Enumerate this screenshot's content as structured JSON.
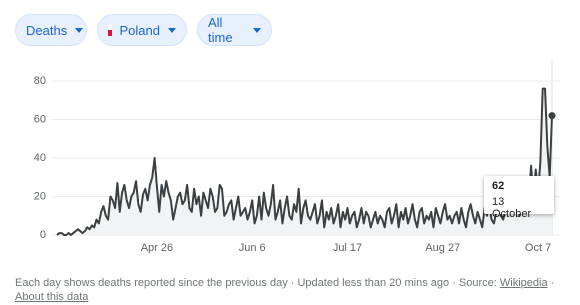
{
  "controls": [
    {
      "label": "Deaths"
    },
    {
      "label": "Poland"
    },
    {
      "label": "All time"
    }
  ],
  "chart_data": {
    "type": "line",
    "categories": [
      null,
      null,
      null,
      null,
      null,
      null,
      null,
      null,
      null,
      null,
      null,
      null,
      null,
      null,
      null,
      null,
      null,
      null,
      null,
      null,
      null,
      null,
      null,
      null,
      null,
      null,
      null,
      null,
      null,
      null,
      null,
      null,
      null,
      null,
      null,
      null,
      null,
      null,
      null,
      null,
      null,
      null,
      null,
      "Apr 26",
      null,
      null,
      null,
      null,
      null,
      null,
      null,
      null,
      null,
      null,
      null,
      null,
      null,
      null,
      null,
      null,
      null,
      null,
      null,
      null,
      null,
      null,
      null,
      null,
      null,
      null,
      null,
      null,
      null,
      null,
      null,
      null,
      null,
      null,
      null,
      null,
      null,
      null,
      null,
      null,
      "Jun 6",
      null,
      null,
      null,
      null,
      null,
      null,
      null,
      null,
      null,
      null,
      null,
      null,
      null,
      null,
      null,
      null,
      null,
      null,
      null,
      null,
      null,
      null,
      null,
      null,
      null,
      null,
      null,
      null,
      null,
      null,
      null,
      null,
      null,
      null,
      null,
      null,
      null,
      null,
      null,
      null,
      "Jul 17",
      null,
      null,
      null,
      null,
      null,
      null,
      null,
      null,
      null,
      null,
      null,
      null,
      null,
      null,
      null,
      null,
      null,
      null,
      null,
      null,
      null,
      null,
      null,
      null,
      null,
      null,
      null,
      null,
      null,
      null,
      null,
      null,
      null,
      null,
      null,
      null,
      null,
      null,
      null,
      null,
      "Aug 27",
      null,
      null,
      null,
      null,
      null,
      null,
      null,
      null,
      null,
      null,
      null,
      null,
      null,
      null,
      null,
      null,
      null,
      null,
      null,
      null,
      null,
      null,
      null,
      null,
      null,
      null,
      null,
      null,
      null,
      null,
      null,
      null,
      null,
      null,
      null,
      null,
      null,
      null,
      null,
      null,
      "Oct 7",
      null,
      null,
      null,
      null,
      null,
      null
    ],
    "values": [
      0,
      1,
      1,
      0,
      0,
      1,
      0,
      1,
      2,
      3,
      2,
      1,
      2,
      4,
      3,
      5,
      4,
      8,
      6,
      12,
      15,
      10,
      8,
      20,
      18,
      14,
      27,
      12,
      22,
      26,
      18,
      14,
      20,
      22,
      28,
      16,
      12,
      21,
      24,
      18,
      26,
      30,
      40,
      25,
      12,
      26,
      20,
      28,
      22,
      18,
      8,
      14,
      20,
      22,
      16,
      18,
      26,
      14,
      12,
      24,
      16,
      20,
      10,
      22,
      18,
      14,
      24,
      20,
      12,
      14,
      26,
      24,
      10,
      12,
      16,
      18,
      8,
      14,
      20,
      10,
      12,
      14,
      8,
      12,
      18,
      6,
      10,
      20,
      8,
      22,
      14,
      10,
      16,
      26,
      8,
      12,
      18,
      6,
      14,
      20,
      10,
      8,
      16,
      12,
      24,
      6,
      14,
      18,
      10,
      8,
      12,
      16,
      6,
      10,
      18,
      4,
      12,
      8,
      14,
      6,
      10,
      16,
      4,
      12,
      8,
      14,
      6,
      10,
      12,
      4,
      8,
      14,
      6,
      12,
      10,
      4,
      8,
      12,
      6,
      10,
      8,
      4,
      12,
      14,
      6,
      10,
      16,
      4,
      12,
      8,
      14,
      6,
      10,
      16,
      8,
      4,
      12,
      14,
      6,
      10,
      8,
      12,
      4,
      14,
      10,
      6,
      12,
      16,
      8,
      10,
      6,
      10,
      12,
      6,
      14,
      8,
      4,
      12,
      16,
      10,
      6,
      12,
      8,
      4,
      14,
      10,
      16,
      8,
      6,
      12,
      18,
      10,
      8,
      14,
      12,
      18,
      22,
      12,
      24,
      10,
      20,
      26,
      28,
      18,
      36,
      20,
      34,
      22,
      38,
      76,
      76,
      46,
      30,
      62
    ],
    "color": "#3c4043",
    "ylim": [
      0,
      90
    ],
    "yticks": [
      0,
      20,
      40,
      60,
      80
    ],
    "grid": true
  },
  "tooltip": {
    "date": "13 October"
  },
  "footer": {
    "text": "Each day shows deaths reported since the previous day · Updated less than 20 mins ago · Source:",
    "source": "Wikipedia",
    "separator": "·",
    "about": "About this data"
  }
}
